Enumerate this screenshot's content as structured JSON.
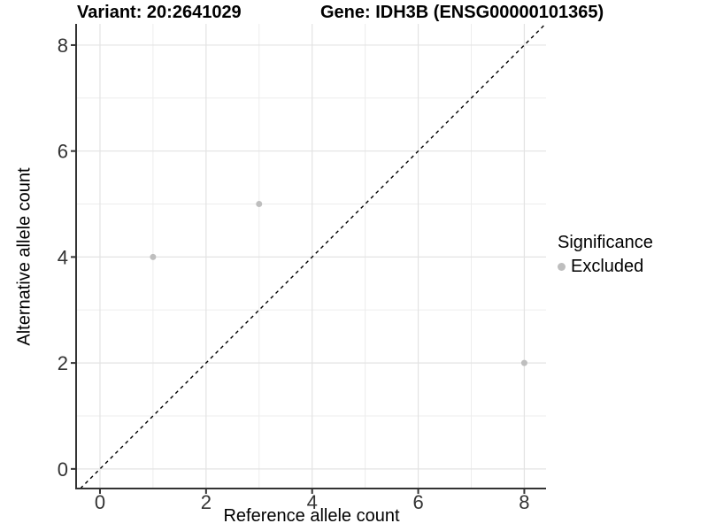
{
  "chart_data": {
    "type": "scatter",
    "title_left": "Variant: 20:2641029",
    "title_right": "Gene: IDH3B (ENSG00000101365)",
    "xlabel": "Reference allele count",
    "ylabel": "Alternative allele count",
    "xlim": [
      -0.45,
      8.41
    ],
    "ylim": [
      -0.37,
      8.4
    ],
    "x_ticks": [
      0,
      2,
      4,
      6,
      8
    ],
    "y_ticks": [
      0,
      2,
      4,
      6,
      8
    ],
    "x_minor": [
      1,
      3,
      5,
      7
    ],
    "y_minor": [
      1,
      3,
      5,
      7
    ],
    "grid": true,
    "identity_line": {
      "slope": 1,
      "intercept": 0,
      "style": "dashed"
    },
    "series": [
      {
        "name": "Excluded",
        "points": [
          {
            "x": 1,
            "y": 4
          },
          {
            "x": 3,
            "y": 5
          },
          {
            "x": 8,
            "y": 2
          }
        ]
      }
    ],
    "legend": {
      "title": "Significance",
      "position": "right",
      "items": [
        {
          "label": "Excluded",
          "color": "#bebebe"
        }
      ]
    },
    "colors": {
      "point": "#bebebe",
      "grid_major": "#e3e3e3",
      "grid_minor": "#ededed",
      "axis_line": "#333333",
      "tick_label": "#333333",
      "identity_line": "#000000",
      "background": "#ffffff"
    }
  }
}
